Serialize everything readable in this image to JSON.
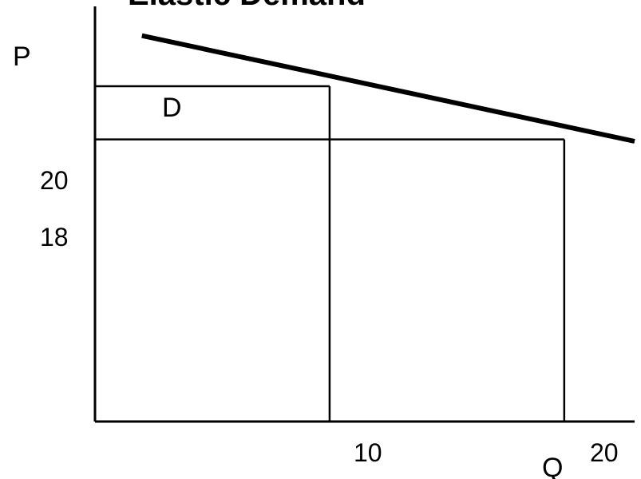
{
  "chart_data": {
    "type": "line",
    "title": "Elastic Demand",
    "xlabel": "Q",
    "ylabel": "P",
    "x_ticks": [
      10,
      20
    ],
    "y_ticks": [
      20,
      18
    ],
    "xlim": [
      0,
      23
    ],
    "ylim": [
      7.4,
      23
    ],
    "series": [
      {
        "name": "D",
        "x": [
          2,
          23
        ],
        "y": [
          21.9,
          17.93
        ]
      }
    ],
    "reference_points": [
      {
        "x": 10,
        "y": 20
      },
      {
        "x": 20,
        "y": 18
      }
    ],
    "grid": false,
    "legend": "none",
    "colors": {
      "line": "#000000",
      "axis": "#000000",
      "background": "#ffffff"
    }
  }
}
